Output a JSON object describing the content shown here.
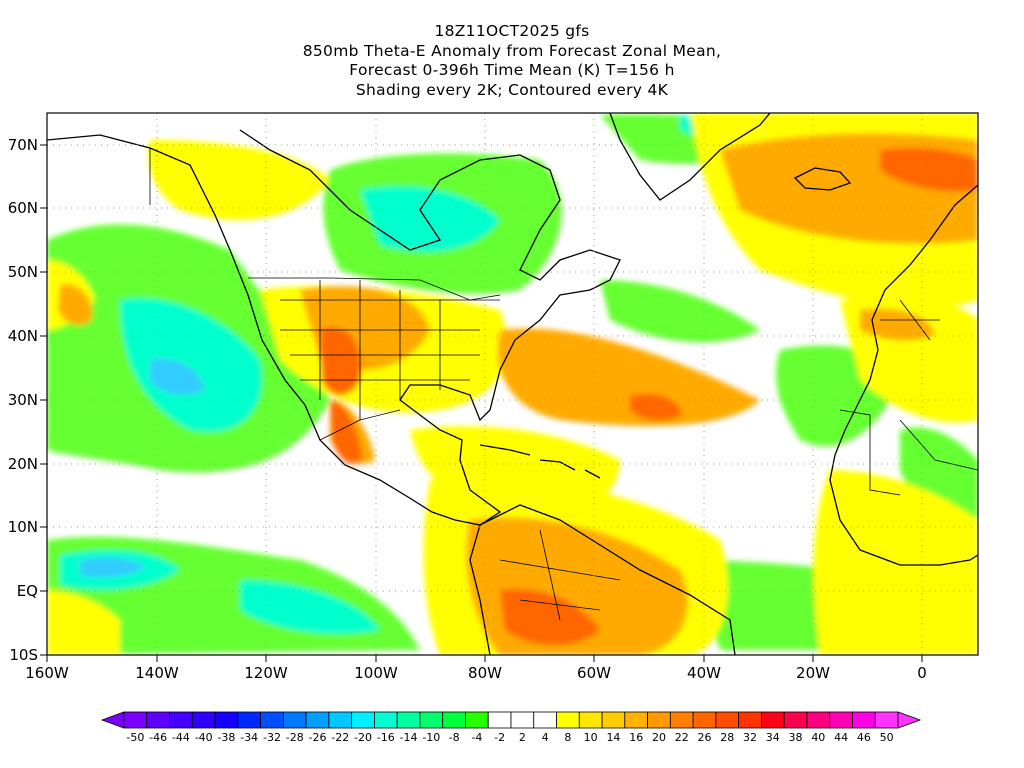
{
  "titles": {
    "line1": "18Z11OCT2025 gfs",
    "line2": "850mb Theta-E Anomaly from Forecast Zonal Mean,",
    "line3": "Forecast 0-396h Time Mean (K) T=156 h",
    "line4": "Shading every 2K; Contoured every 4K"
  },
  "map": {
    "lon_range": [
      -160,
      10
    ],
    "lat_range": [
      -10,
      75
    ],
    "lon_ticks": [
      "160W",
      "140W",
      "120W",
      "100W",
      "80W",
      "60W",
      "40W",
      "20W",
      "0"
    ],
    "lat_ticks": [
      "70N",
      "60N",
      "50N",
      "40N",
      "30N",
      "20N",
      "10N",
      "EQ",
      "10S"
    ]
  },
  "colorbar": {
    "labels": [
      "-50",
      "-46",
      "-44",
      "-40",
      "-38",
      "-34",
      "-32",
      "-28",
      "-26",
      "-22",
      "-20",
      "-16",
      "-14",
      "-10",
      "-8",
      "-4",
      "-2",
      "2",
      "4",
      "8",
      "10",
      "14",
      "16",
      "20",
      "22",
      "26",
      "28",
      "32",
      "34",
      "38",
      "40",
      "44",
      "46",
      "50"
    ],
    "colors": [
      "#7a00ff",
      "#6000ff",
      "#4600ff",
      "#2d00ff",
      "#1400ff",
      "#0028ff",
      "#0050ff",
      "#0078ff",
      "#00a0ff",
      "#00c8ff",
      "#00f0ff",
      "#00ffd2",
      "#00ffa0",
      "#00ff6e",
      "#00ff3c",
      "#28ff00",
      "#ffffff",
      "#ffffff",
      "#ffffff",
      "#ffff00",
      "#ffe600",
      "#ffcc00",
      "#ffb300",
      "#ff9900",
      "#ff8000",
      "#ff6600",
      "#ff4c00",
      "#ff3300",
      "#ff0019",
      "#ff004c",
      "#ff007f",
      "#ff00b3",
      "#ff00e6",
      "#ff33ff"
    ]
  }
}
